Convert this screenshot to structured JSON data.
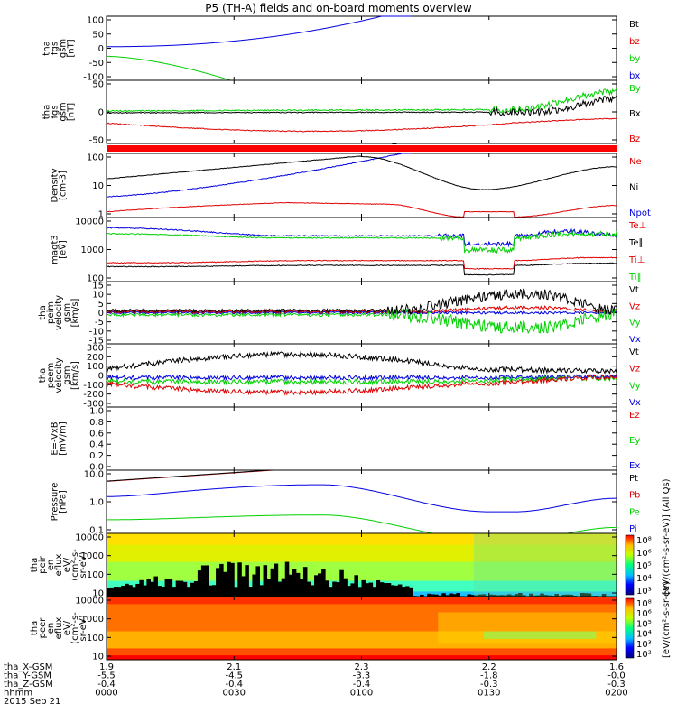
{
  "title": "P5 (TH-A) fields and on-board moments overview",
  "colors": {
    "black": "#000000",
    "red": "#e00000",
    "green": "#00d000",
    "blue": "#0000e0"
  },
  "chart_data": {
    "type": "line",
    "x_ticks": [
      "0000",
      "0030",
      "0100",
      "0130",
      "0200"
    ],
    "footer": {
      "row_labels": [
        "tha_X-GSM",
        "tha_Y-GSM",
        "tha_Z-GSM",
        "hhmm",
        "2015 Sep 21"
      ],
      "rows": [
        [
          "1.9",
          "2.1",
          "2.3",
          "2.2",
          "1.6"
        ],
        [
          "-5.5",
          "-4.5",
          "-3.3",
          "-1.8",
          "-0.0"
        ],
        [
          "-0.4",
          "-0.4",
          "-0.4",
          "-0.3",
          "-0.3"
        ]
      ]
    },
    "panels": [
      {
        "id": "fgs-gsm",
        "ylabel": [
          "tha",
          "fgs",
          "gsm",
          "[nT]"
        ],
        "ylim": [
          -100,
          100
        ],
        "ticks": [
          "100",
          "50",
          "0",
          "-50",
          "-100"
        ],
        "legend": [
          {
            "t": "Bt",
            "c": "black"
          },
          {
            "t": "bz",
            "c": "red"
          },
          {
            "t": "by",
            "c": "green"
          },
          {
            "t": "bx",
            "c": "blue"
          }
        ]
      },
      {
        "id": "fgs-dsl",
        "ylabel": [
          "tha",
          "fgs",
          "gsm",
          "[nT]"
        ],
        "ylim": [
          -70,
          70
        ],
        "ticks": [
          "50",
          "0",
          "-50"
        ],
        "legend": [
          {
            "t": "By",
            "c": "green"
          },
          {
            "t": "Bx",
            "c": "black"
          },
          {
            "t": "Bz",
            "c": "red"
          }
        ]
      },
      {
        "id": "density",
        "ylabel": [
          "Density",
          "[cm-3]"
        ],
        "ylim": [
          0.6,
          200
        ],
        "log": true,
        "ticks": [
          "100",
          "10",
          "1"
        ],
        "legend": [
          {
            "t": "Ne",
            "c": "red"
          },
          {
            "t": "Ni",
            "c": "black"
          },
          {
            "t": "Npot",
            "c": "blue"
          }
        ]
      },
      {
        "id": "temperature",
        "ylabel": [
          "magt3",
          "[eV]"
        ],
        "ylim": [
          50,
          12000
        ],
        "log": true,
        "ticks": [
          "10000",
          "1000",
          "100"
        ],
        "legend": [
          {
            "t": "Te⊥",
            "c": "red"
          },
          {
            "t": "Te∥",
            "c": "black"
          },
          {
            "t": "Ti⊥",
            "c": "red"
          },
          {
            "t": "Ti∥",
            "c": "green"
          }
        ]
      },
      {
        "id": "peim-velocity",
        "ylabel": [
          "tha",
          "peim",
          "velocity",
          "gsm",
          "[km/s]"
        ],
        "ylim": [
          -15,
          15
        ],
        "ticks": [
          "15",
          "10",
          "5",
          "0",
          "-5",
          "-10",
          "-15"
        ],
        "legend": [
          {
            "t": "Vt",
            "c": "black"
          },
          {
            "t": "Vz",
            "c": "red"
          },
          {
            "t": "Vy",
            "c": "green"
          },
          {
            "t": "Vx",
            "c": "blue"
          }
        ]
      },
      {
        "id": "peem-velocity",
        "ylabel": [
          "tha",
          "peem",
          "velocity",
          "gsm",
          "[km/s]"
        ],
        "ylim": [
          -300,
          300
        ],
        "ticks": [
          "300",
          "200",
          "100",
          "0",
          "-100",
          "-200",
          "-300"
        ],
        "legend": [
          {
            "t": "Vt",
            "c": "black"
          },
          {
            "t": "Vz",
            "c": "red"
          },
          {
            "t": "Vy",
            "c": "green"
          },
          {
            "t": "Vx",
            "c": "blue"
          }
        ]
      },
      {
        "id": "efield",
        "ylabel": [
          "E=-VxB",
          "[mV/m]"
        ],
        "ylim": [
          0,
          1
        ],
        "ticks": [
          "1.0",
          "0.8",
          "0.6",
          "0.4",
          "0.2",
          "0.0"
        ],
        "legend": [
          {
            "t": "Ez",
            "c": "red"
          },
          {
            "t": "Ey",
            "c": "green"
          },
          {
            "t": "Ex",
            "c": "blue"
          }
        ]
      },
      {
        "id": "pressure",
        "ylabel": [
          "Pressure",
          "[nPa]"
        ],
        "ylim": [
          0.04,
          25
        ],
        "log": true,
        "ticks": [
          "10.0",
          "1.0",
          "0.1"
        ],
        "legend": [
          {
            "t": "Pt",
            "c": "black"
          },
          {
            "t": "Pb",
            "c": "red"
          },
          {
            "t": "Pe",
            "c": "green"
          },
          {
            "t": "Pi",
            "c": "blue"
          }
        ]
      },
      {
        "id": "peir-eflux",
        "ylabel": [
          "tha",
          "peir",
          "en",
          "eflux",
          "eV/",
          "(cm²-s-",
          "sr-eV)"
        ],
        "ylim": [
          7,
          25000
        ],
        "log": true,
        "ticks": [
          "10000",
          "1000",
          "100",
          "10"
        ],
        "colorbar": {
          "label": "[eV/(cm²-s-sr-eV)] (All Qs)",
          "ticks": [
            "10⁸",
            "10⁶",
            "10⁵",
            "10⁴",
            "10³"
          ]
        }
      },
      {
        "id": "peer-eflux",
        "ylabel": [
          "tha",
          "peer",
          "en",
          "eflux",
          "eV/",
          "(cm²-s-",
          "sr-eV)"
        ],
        "ylim": [
          7,
          25000
        ],
        "log": true,
        "ticks": [
          "10000",
          "1000",
          "100",
          "10"
        ],
        "colorbar": {
          "label": "[eV/(cm²-s-sr-eV)]",
          "ticks": [
            "10⁸",
            "10⁶",
            "10⁵",
            "10⁴",
            "10³",
            "10²"
          ]
        }
      }
    ]
  }
}
